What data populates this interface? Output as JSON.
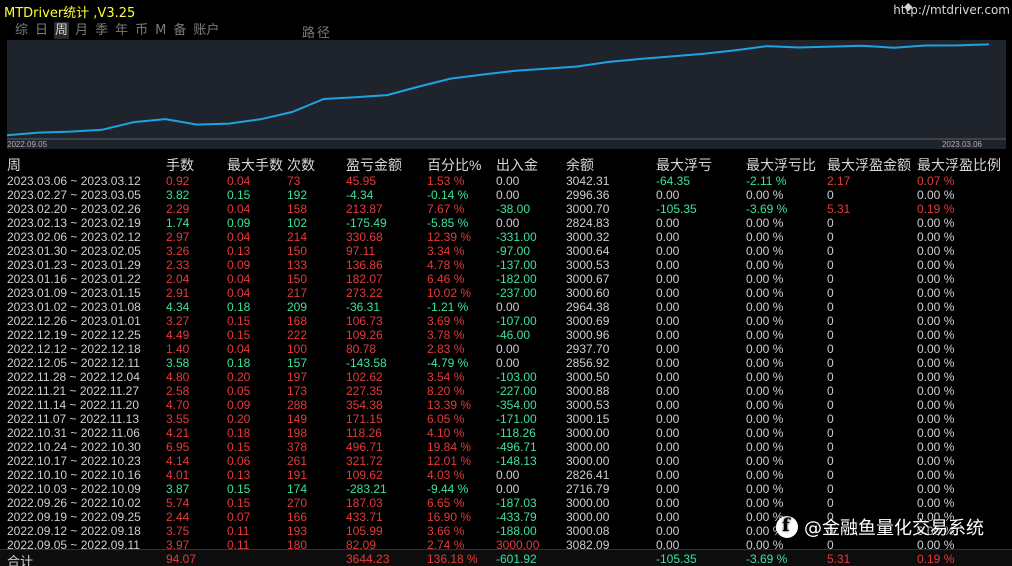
{
  "app": {
    "title": "MTDriver统计 ,V3.25",
    "url": "http://mtdriver.com"
  },
  "tabs": [
    {
      "label": "综",
      "active": false
    },
    {
      "label": "日",
      "active": false
    },
    {
      "label": "周",
      "active": true
    },
    {
      "label": "月",
      "active": false
    },
    {
      "label": "季",
      "active": false
    },
    {
      "label": "年",
      "active": false
    },
    {
      "label": "币",
      "active": false
    },
    {
      "label": "M",
      "active": false
    },
    {
      "label": "备",
      "active": false
    },
    {
      "label": "账户",
      "active": false
    }
  ],
  "chart_label": "路径",
  "chart_data": {
    "type": "line",
    "x_start_label": "2022.09.05",
    "x_end_label": "2023.03.06",
    "series_color": "#1fa3e0",
    "values": [
      3082.09,
      3101,
      3108,
      3121,
      3176,
      3197,
      3158,
      3165,
      3196,
      3248,
      3341,
      3354,
      3369,
      3430,
      3487,
      3516,
      3542,
      3558,
      3574,
      3607,
      3628,
      3646,
      3665,
      3690,
      3720,
      3710,
      3716,
      3722,
      3708,
      3724,
      3725,
      3732
    ],
    "grid": false,
    "legend": "none"
  },
  "headers": {
    "period": "周",
    "lots": "手数",
    "max_lot": "最大手数",
    "trades": "次数",
    "profit": "盈亏金额",
    "pct": "百分比%",
    "flow": "出入金",
    "balance": "余额",
    "max_float_loss": "最大浮亏",
    "max_float_loss_pct": "最大浮亏比",
    "max_float_profit": "最大浮盈金额",
    "max_float_profit_pct": "最大浮盈比例"
  },
  "rows": [
    {
      "period": "2023.03.06 ~ 2023.03.12",
      "lots": "0.92",
      "max_lot": "0.04",
      "trades": "73",
      "profit": "45.95",
      "pct": "1.53 %",
      "flow": "0.00",
      "balance": "3042.31",
      "mfl": "-64.35",
      "mflp": "-2.11 %",
      "mfp": "2.17",
      "mfpp": "0.07 %",
      "tone": "red",
      "mfl_tone": "green",
      "mfp_tone": "red"
    },
    {
      "period": "2023.02.27 ~ 2023.03.05",
      "lots": "3.82",
      "max_lot": "0.15",
      "trades": "192",
      "profit": "-4.34",
      "pct": "-0.14 %",
      "flow": "0.00",
      "balance": "2996.36",
      "mfl": "0.00",
      "mflp": "0.00 %",
      "mfp": "0",
      "mfpp": "0.00 %",
      "tone": "green",
      "mfl_tone": "white",
      "mfp_tone": "white"
    },
    {
      "period": "2023.02.20 ~ 2023.02.26",
      "lots": "2.29",
      "max_lot": "0.04",
      "trades": "158",
      "profit": "213.87",
      "pct": "7.67 %",
      "flow": "-38.00",
      "balance": "3000.70",
      "mfl": "-105.35",
      "mflp": "-3.69 %",
      "mfp": "5.31",
      "mfpp": "0.19 %",
      "tone": "red",
      "mfl_tone": "green",
      "mfp_tone": "red"
    },
    {
      "period": "2023.02.13 ~ 2023.02.19",
      "lots": "1.74",
      "max_lot": "0.09",
      "trades": "102",
      "profit": "-175.49",
      "pct": "-5.85 %",
      "flow": "0.00",
      "balance": "2824.83",
      "mfl": "0.00",
      "mflp": "0.00 %",
      "mfp": "0",
      "mfpp": "0.00 %",
      "tone": "green",
      "mfl_tone": "white",
      "mfp_tone": "white"
    },
    {
      "period": "2023.02.06 ~ 2023.02.12",
      "lots": "2.97",
      "max_lot": "0.04",
      "trades": "214",
      "profit": "330.68",
      "pct": "12.39 %",
      "flow": "-331.00",
      "balance": "3000.32",
      "mfl": "0.00",
      "mflp": "0.00 %",
      "mfp": "0",
      "mfpp": "0.00 %",
      "tone": "red",
      "mfl_tone": "white",
      "mfp_tone": "white"
    },
    {
      "period": "2023.01.30 ~ 2023.02.05",
      "lots": "3.26",
      "max_lot": "0.13",
      "trades": "150",
      "profit": "97.11",
      "pct": "3.34 %",
      "flow": "-97.00",
      "balance": "3000.64",
      "mfl": "0.00",
      "mflp": "0.00 %",
      "mfp": "0",
      "mfpp": "0.00 %",
      "tone": "red",
      "mfl_tone": "white",
      "mfp_tone": "white"
    },
    {
      "period": "2023.01.23 ~ 2023.01.29",
      "lots": "2.33",
      "max_lot": "0.09",
      "trades": "133",
      "profit": "136.86",
      "pct": "4.78 %",
      "flow": "-137.00",
      "balance": "3000.53",
      "mfl": "0.00",
      "mflp": "0.00 %",
      "mfp": "0",
      "mfpp": "0.00 %",
      "tone": "red",
      "mfl_tone": "white",
      "mfp_tone": "white"
    },
    {
      "period": "2023.01.16 ~ 2023.01.22",
      "lots": "2.04",
      "max_lot": "0.04",
      "trades": "150",
      "profit": "182.07",
      "pct": "6.46 %",
      "flow": "-182.00",
      "balance": "3000.67",
      "mfl": "0.00",
      "mflp": "0.00 %",
      "mfp": "0",
      "mfpp": "0.00 %",
      "tone": "red",
      "mfl_tone": "white",
      "mfp_tone": "white"
    },
    {
      "period": "2023.01.09 ~ 2023.01.15",
      "lots": "2.91",
      "max_lot": "0.04",
      "trades": "217",
      "profit": "273.22",
      "pct": "10.02 %",
      "flow": "-237.00",
      "balance": "3000.60",
      "mfl": "0.00",
      "mflp": "0.00 %",
      "mfp": "0",
      "mfpp": "0.00 %",
      "tone": "red",
      "mfl_tone": "white",
      "mfp_tone": "white"
    },
    {
      "period": "2023.01.02 ~ 2023.01.08",
      "lots": "4.34",
      "max_lot": "0.18",
      "trades": "209",
      "profit": "-36.31",
      "pct": "-1.21 %",
      "flow": "0.00",
      "balance": "2964.38",
      "mfl": "0.00",
      "mflp": "0.00 %",
      "mfp": "0",
      "mfpp": "0.00 %",
      "tone": "green",
      "mfl_tone": "white",
      "mfp_tone": "white"
    },
    {
      "period": "2022.12.26 ~ 2023.01.01",
      "lots": "3.27",
      "max_lot": "0.15",
      "trades": "168",
      "profit": "106.73",
      "pct": "3.69 %",
      "flow": "-107.00",
      "balance": "3000.69",
      "mfl": "0.00",
      "mflp": "0.00 %",
      "mfp": "0",
      "mfpp": "0.00 %",
      "tone": "red",
      "mfl_tone": "white",
      "mfp_tone": "white"
    },
    {
      "period": "2022.12.19 ~ 2022.12.25",
      "lots": "4.49",
      "max_lot": "0.15",
      "trades": "222",
      "profit": "109.26",
      "pct": "3.78 %",
      "flow": "-46.00",
      "balance": "3000.96",
      "mfl": "0.00",
      "mflp": "0.00 %",
      "mfp": "0",
      "mfpp": "0.00 %",
      "tone": "red",
      "mfl_tone": "white",
      "mfp_tone": "white"
    },
    {
      "period": "2022.12.12 ~ 2022.12.18",
      "lots": "1.40",
      "max_lot": "0.04",
      "trades": "100",
      "profit": "80.78",
      "pct": "2.83 %",
      "flow": "0.00",
      "balance": "2937.70",
      "mfl": "0.00",
      "mflp": "0.00 %",
      "mfp": "0",
      "mfpp": "0.00 %",
      "tone": "red",
      "mfl_tone": "white",
      "mfp_tone": "white"
    },
    {
      "period": "2022.12.05 ~ 2022.12.11",
      "lots": "3.58",
      "max_lot": "0.18",
      "trades": "157",
      "profit": "-143.58",
      "pct": "-4.79 %",
      "flow": "0.00",
      "balance": "2856.92",
      "mfl": "0.00",
      "mflp": "0.00 %",
      "mfp": "0",
      "mfpp": "0.00 %",
      "tone": "green",
      "mfl_tone": "white",
      "mfp_tone": "white"
    },
    {
      "period": "2022.11.28 ~ 2022.12.04",
      "lots": "4.80",
      "max_lot": "0.20",
      "trades": "197",
      "profit": "102.62",
      "pct": "3.54 %",
      "flow": "-103.00",
      "balance": "3000.50",
      "mfl": "0.00",
      "mflp": "0.00 %",
      "mfp": "0",
      "mfpp": "0.00 %",
      "tone": "red",
      "mfl_tone": "white",
      "mfp_tone": "white"
    },
    {
      "period": "2022.11.21 ~ 2022.11.27",
      "lots": "2.58",
      "max_lot": "0.05",
      "trades": "173",
      "profit": "227.35",
      "pct": "8.20 %",
      "flow": "-227.00",
      "balance": "3000.88",
      "mfl": "0.00",
      "mflp": "0.00 %",
      "mfp": "0",
      "mfpp": "0.00 %",
      "tone": "red",
      "mfl_tone": "white",
      "mfp_tone": "white"
    },
    {
      "period": "2022.11.14 ~ 2022.11.20",
      "lots": "4.70",
      "max_lot": "0.09",
      "trades": "288",
      "profit": "354.38",
      "pct": "13.39 %",
      "flow": "-354.00",
      "balance": "3000.53",
      "mfl": "0.00",
      "mflp": "0.00 %",
      "mfp": "0",
      "mfpp": "0.00 %",
      "tone": "red",
      "mfl_tone": "white",
      "mfp_tone": "white"
    },
    {
      "period": "2022.11.07 ~ 2022.11.13",
      "lots": "3.55",
      "max_lot": "0.20",
      "trades": "149",
      "profit": "171.15",
      "pct": "6.05 %",
      "flow": "-171.00",
      "balance": "3000.15",
      "mfl": "0.00",
      "mflp": "0.00 %",
      "mfp": "0",
      "mfpp": "0.00 %",
      "tone": "red",
      "mfl_tone": "white",
      "mfp_tone": "white"
    },
    {
      "period": "2022.10.31 ~ 2022.11.06",
      "lots": "4.21",
      "max_lot": "0.18",
      "trades": "198",
      "profit": "118.26",
      "pct": "4.10 %",
      "flow": "-118.26",
      "balance": "3000.00",
      "mfl": "0.00",
      "mflp": "0.00 %",
      "mfp": "0",
      "mfpp": "0.00 %",
      "tone": "red",
      "mfl_tone": "white",
      "mfp_tone": "white"
    },
    {
      "period": "2022.10.24 ~ 2022.10.30",
      "lots": "6.95",
      "max_lot": "0.15",
      "trades": "378",
      "profit": "496.71",
      "pct": "19.84 %",
      "flow": "-496.71",
      "balance": "3000.00",
      "mfl": "0.00",
      "mflp": "0.00 %",
      "mfp": "0",
      "mfpp": "0.00 %",
      "tone": "red",
      "mfl_tone": "white",
      "mfp_tone": "white"
    },
    {
      "period": "2022.10.17 ~ 2022.10.23",
      "lots": "4.14",
      "max_lot": "0.06",
      "trades": "261",
      "profit": "321.72",
      "pct": "12.01 %",
      "flow": "-148.13",
      "balance": "3000.00",
      "mfl": "0.00",
      "mflp": "0.00 %",
      "mfp": "0",
      "mfpp": "0.00 %",
      "tone": "red",
      "mfl_tone": "white",
      "mfp_tone": "white"
    },
    {
      "period": "2022.10.10 ~ 2022.10.16",
      "lots": "4.01",
      "max_lot": "0.13",
      "trades": "191",
      "profit": "109.62",
      "pct": "4.03 %",
      "flow": "0.00",
      "balance": "2826.41",
      "mfl": "0.00",
      "mflp": "0.00 %",
      "mfp": "0",
      "mfpp": "0.00 %",
      "tone": "red",
      "mfl_tone": "white",
      "mfp_tone": "white"
    },
    {
      "period": "2022.10.03 ~ 2022.10.09",
      "lots": "3.87",
      "max_lot": "0.15",
      "trades": "174",
      "profit": "-283.21",
      "pct": "-9.44 %",
      "flow": "0.00",
      "balance": "2716.79",
      "mfl": "0.00",
      "mflp": "0.00 %",
      "mfp": "0",
      "mfpp": "0.00 %",
      "tone": "green",
      "mfl_tone": "white",
      "mfp_tone": "white"
    },
    {
      "period": "2022.09.26 ~ 2022.10.02",
      "lots": "5.74",
      "max_lot": "0.15",
      "trades": "270",
      "profit": "187.03",
      "pct": "6.65 %",
      "flow": "-187.03",
      "balance": "3000.00",
      "mfl": "0.00",
      "mflp": "0.00 %",
      "mfp": "0",
      "mfpp": "0.00 %",
      "tone": "red",
      "mfl_tone": "white",
      "mfp_tone": "white"
    },
    {
      "period": "2022.09.19 ~ 2022.09.25",
      "lots": "2.44",
      "max_lot": "0.07",
      "trades": "166",
      "profit": "433.71",
      "pct": "16.90 %",
      "flow": "-433.79",
      "balance": "3000.00",
      "mfl": "0.00",
      "mflp": "0.00 %",
      "mfp": "0",
      "mfpp": "0.00 %",
      "tone": "red",
      "mfl_tone": "white",
      "mfp_tone": "white"
    },
    {
      "period": "2022.09.12 ~ 2022.09.18",
      "lots": "3.75",
      "max_lot": "0.11",
      "trades": "193",
      "profit": "105.99",
      "pct": "3.66 %",
      "flow": "-188.00",
      "balance": "3000.08",
      "mfl": "0.00",
      "mflp": "0.00 %",
      "mfp": "0",
      "mfpp": "0.00 %",
      "tone": "red",
      "mfl_tone": "white",
      "mfp_tone": "white"
    },
    {
      "period": "2022.09.05 ~ 2022.09.11",
      "lots": "3.97",
      "max_lot": "0.11",
      "trades": "180",
      "profit": "82.09",
      "pct": "2.74 %",
      "flow": "3000.00",
      "balance": "3082.09",
      "mfl": "0.00",
      "mflp": "0.00 %",
      "mfp": "0",
      "mfpp": "0.00 %",
      "tone": "red",
      "mfl_tone": "white",
      "mfp_tone": "white"
    }
  ],
  "total": {
    "label": "合计",
    "lots": "94.07",
    "profit": "3644.23",
    "pct": "136.18 %",
    "flow": "-601.92",
    "mfl": "-105.35",
    "mflp": "-3.69 %",
    "mfp": "5.31",
    "mfpp": "0.19 %"
  },
  "watermark": {
    "text": "@金融鱼量化交易系统"
  },
  "colors": {
    "profit_red": "#e43a3a",
    "loss_green": "#3ee29a",
    "title_yellow": "#ffff33",
    "chart_bg": "#1f232b",
    "line_blue": "#1fa3e0"
  }
}
